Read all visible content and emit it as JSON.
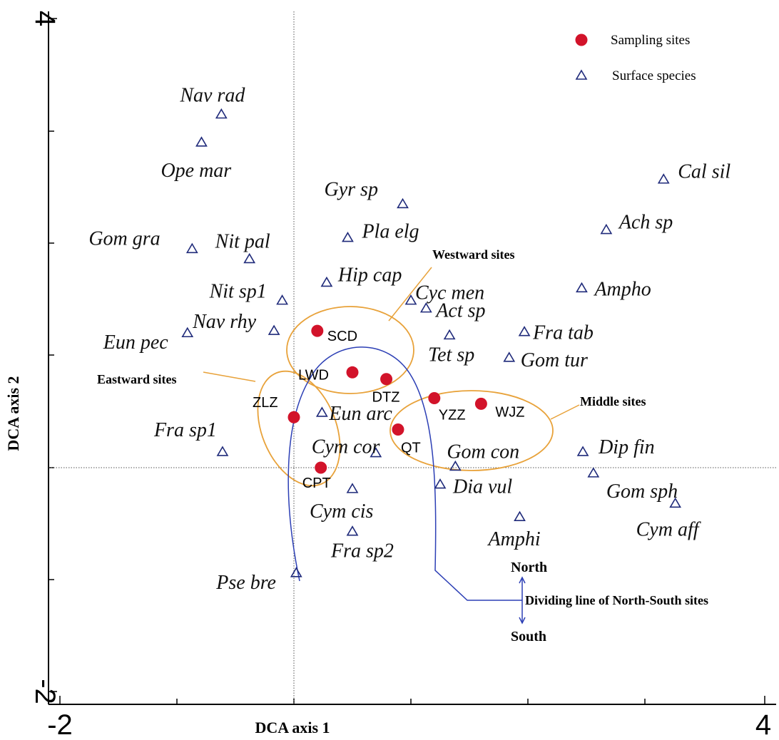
{
  "chart_data": {
    "type": "scatter",
    "title": "",
    "xlabel": "DCA axis 1",
    "ylabel": "DCA axis 2",
    "xlim": [
      -2,
      4
    ],
    "ylim": [
      -2,
      4
    ],
    "x_tick_labels": [
      "-2",
      "4"
    ],
    "y_tick_labels": [
      "4",
      "-2"
    ],
    "reference_lines": {
      "x": 0,
      "y": 0
    },
    "legend": {
      "placement": "top-right",
      "entries": [
        {
          "name": "Sampling sites",
          "marker": "filled-circle",
          "color": "#d2132a"
        },
        {
          "name": "Surface species",
          "marker": "open-triangle",
          "color": "#1f2a7a"
        }
      ]
    },
    "series": [
      {
        "name": "Sampling sites",
        "points": [
          {
            "label": "SCD",
            "x": 0.2,
            "y": 1.22
          },
          {
            "label": "LWD",
            "x": 0.5,
            "y": 0.85
          },
          {
            "label": "DTZ",
            "x": 0.79,
            "y": 0.79
          },
          {
            "label": "YZZ",
            "x": 1.2,
            "y": 0.62
          },
          {
            "label": "WJZ",
            "x": 1.6,
            "y": 0.57
          },
          {
            "label": "ZLZ",
            "x": 0.0,
            "y": 0.45
          },
          {
            "label": "QT",
            "x": 0.89,
            "y": 0.34
          },
          {
            "label": "CPT",
            "x": 0.23,
            "y": 0.0
          }
        ]
      },
      {
        "name": "Surface species",
        "points": [
          {
            "label": "Nav rad",
            "x": -0.62,
            "y": 3.15
          },
          {
            "label": "Ope mar",
            "x": -0.79,
            "y": 2.9
          },
          {
            "label": "Cal sil",
            "x": 3.16,
            "y": 2.57
          },
          {
            "label": "Gyr sp",
            "x": 0.93,
            "y": 2.35
          },
          {
            "label": "Ach sp",
            "x": 2.67,
            "y": 2.12
          },
          {
            "label": "Pla elg",
            "x": 0.46,
            "y": 2.05
          },
          {
            "label": "Gom gra",
            "x": -0.87,
            "y": 1.95
          },
          {
            "label": "Nit pal",
            "x": -0.38,
            "y": 1.86
          },
          {
            "label": "Ampho",
            "x": 2.46,
            "y": 1.6
          },
          {
            "label": "Hip cap",
            "x": 0.28,
            "y": 1.65
          },
          {
            "label": "Nit sp1",
            "x": -0.1,
            "y": 1.49
          },
          {
            "label": "Cyc men",
            "x": 1.0,
            "y": 1.49
          },
          {
            "label": "Act sp",
            "x": 1.13,
            "y": 1.42
          },
          {
            "label": "Nav rhy",
            "x": -0.17,
            "y": 1.22
          },
          {
            "label": "Eun pec",
            "x": -0.91,
            "y": 1.2
          },
          {
            "label": "Fra tab",
            "x": 1.97,
            "y": 1.21
          },
          {
            "label": "Tet sp",
            "x": 1.33,
            "y": 1.18
          },
          {
            "label": "Gom tur",
            "x": 1.84,
            "y": 0.98
          },
          {
            "label": "Eun arc",
            "x": 0.24,
            "y": 0.49
          },
          {
            "label": "Fra sp1",
            "x": -0.61,
            "y": 0.14
          },
          {
            "label": "Cym cor",
            "x": 0.7,
            "y": 0.13
          },
          {
            "label": "Dip fin",
            "x": 2.47,
            "y": 0.14
          },
          {
            "label": "Gom con",
            "x": 1.38,
            "y": 0.01
          },
          {
            "label": "Gom sph",
            "x": 2.56,
            "y": -0.05
          },
          {
            "label": "Cym cis",
            "x": 0.5,
            "y": -0.19
          },
          {
            "label": "Dia vul",
            "x": 1.25,
            "y": -0.15
          },
          {
            "label": "Cym aff",
            "x": 3.26,
            "y": -0.32
          },
          {
            "label": "Amphi",
            "x": 1.93,
            "y": -0.44
          },
          {
            "label": "Fra sp2",
            "x": 0.5,
            "y": -0.57
          },
          {
            "label": "Pse bre",
            "x": 0.02,
            "y": -0.94
          }
        ]
      }
    ],
    "annotations": [
      {
        "text": "Westward sites"
      },
      {
        "text": "Eastward sites"
      },
      {
        "text": "Middle sites"
      },
      {
        "text": "North"
      },
      {
        "text": "South"
      },
      {
        "text": "Dividing line of North-South sites"
      }
    ]
  }
}
